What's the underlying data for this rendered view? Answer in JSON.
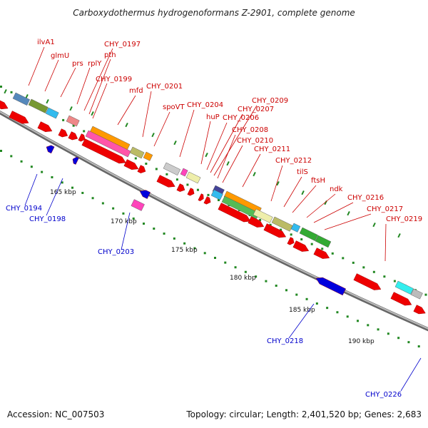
{
  "title": "Carboxydothermus hydrogenoformans Z-2901, complete genome",
  "footer": {
    "accession": "Accession: NC_007503",
    "summary": "Topology: circular; Length: 2,401,520 bp; Genes: 2,683"
  },
  "colors": {
    "forward_label": "#cc0000",
    "reverse_label": "#0000cc",
    "forward_cds": "#ee0000",
    "reverse_cds": "#0000dd",
    "backbone": "#888888",
    "tick": "#228822"
  },
  "scale": {
    "ticks": [
      "165 kbp",
      "170 kbp",
      "175 kbp",
      "180 kbp",
      "185 kbp",
      "190 kbp"
    ]
  },
  "forward_labels": [
    "ilvA1",
    "glmU",
    "prs",
    "rplY",
    "CHY_0197",
    "pth",
    "CHY_0199",
    "mfd",
    "CHY_0201",
    "spoVT",
    "CHY_0204",
    "huP",
    "CHY_0206",
    "CHY_0207",
    "CHY_0209",
    "CHY_0208",
    "CHY_0210",
    "CHY_0211",
    "CHY_0212",
    "tilS",
    "ftsH",
    "ndk",
    "CHY_0216",
    "CHY_0217",
    "CHY_0219"
  ],
  "reverse_labels": [
    "CHY_0194",
    "CHY_0198",
    "CHY_0203",
    "CHY_0218",
    "CHY_0226"
  ]
}
